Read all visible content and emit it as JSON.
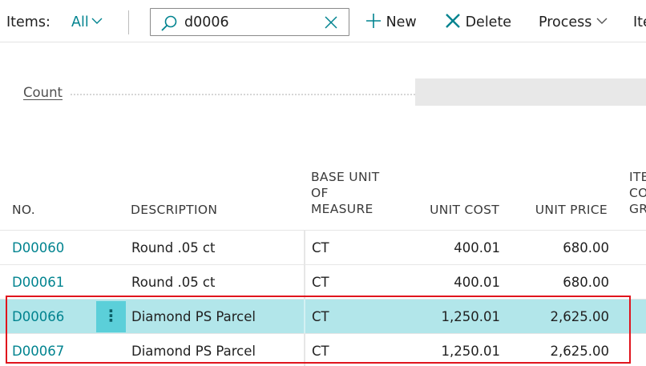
{
  "toolbar": {
    "items_label": "Items:",
    "filter_label": "All",
    "search_value": "d0006",
    "new_label": "New",
    "delete_label": "Delete",
    "process_label": "Process",
    "item_label": "Ite"
  },
  "cues": {
    "count_label": "Count"
  },
  "table": {
    "headers": {
      "no": "NO.",
      "description": "DESCRIPTION",
      "base_unit_line1": "BASE UNIT",
      "base_unit_line2": "OF",
      "base_unit_line3": "MEASURE",
      "unit_cost": "UNIT COST",
      "unit_price": "UNIT PRICE",
      "item_line1": "ITE",
      "item_line2": "CO",
      "item_line3": "GR"
    },
    "rows": [
      {
        "no": "D00060",
        "description": "Round .05 ct",
        "base_unit": "CT",
        "unit_cost": "400.01",
        "unit_price": "680.00"
      },
      {
        "no": "D00061",
        "description": "Round .05 ct",
        "base_unit": "CT",
        "unit_cost": "400.01",
        "unit_price": "680.00"
      },
      {
        "no": "D00066",
        "description": "Diamond PS Parcel",
        "base_unit": "CT",
        "unit_cost": "1,250.01",
        "unit_price": "2,625.00",
        "selected": true
      },
      {
        "no": "D00067",
        "description": "Diamond PS Parcel",
        "base_unit": "CT",
        "unit_cost": "1,250.01",
        "unit_price": "2,625.00"
      }
    ],
    "row_menu_glyph": "⋮"
  },
  "colors": {
    "accent": "#00838f",
    "selected_row": "#b2e6ea",
    "highlight_border": "#e0141d"
  },
  "icons": [
    "chevron-down-icon",
    "search-icon",
    "clear-icon",
    "plus-icon",
    "delete-x-icon"
  ]
}
